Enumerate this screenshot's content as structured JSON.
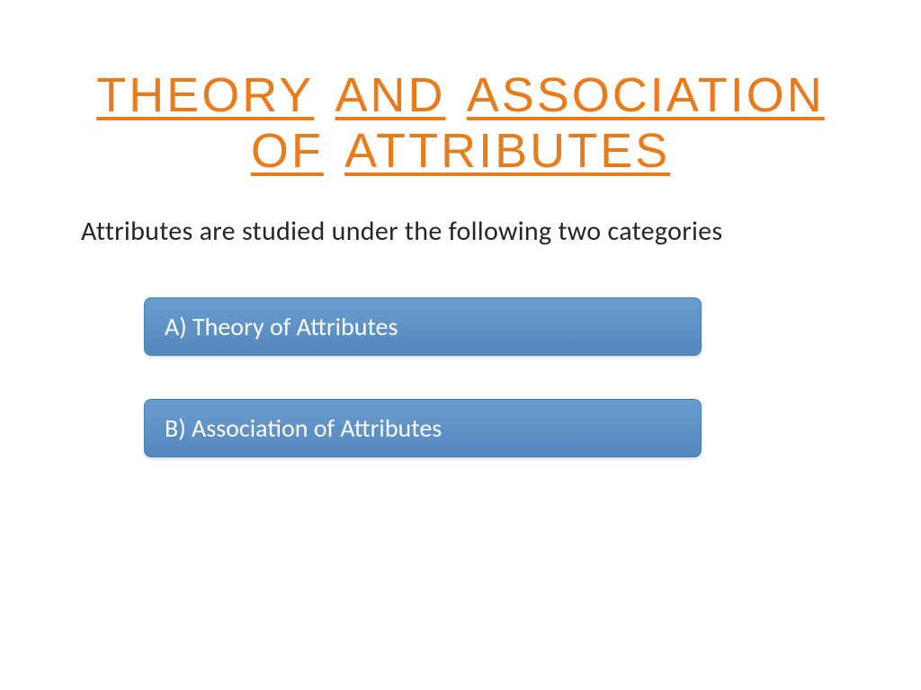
{
  "title": {
    "words": [
      "THEORY",
      "AND",
      "ASSOCIATION",
      "OF",
      "ATTRIBUTES"
    ],
    "color": "#E87B1C",
    "fontsize": 54
  },
  "subtitle": {
    "text": "Attributes  are studied under the following two categories",
    "color": "#262626",
    "fontsize": 30
  },
  "categories": [
    {
      "label": "A) Theory of Attributes",
      "background_gradient_top": "#6a9cce",
      "background_gradient_bottom": "#5488bd",
      "text_color": "#ffffff",
      "fontsize": 28,
      "border_radius": 8
    },
    {
      "label": "B) Association of Attributes",
      "background_gradient_top": "#6a9cce",
      "background_gradient_bottom": "#5488bd",
      "text_color": "#ffffff",
      "fontsize": 28,
      "border_radius": 8
    }
  ],
  "background_color": "#ffffff"
}
